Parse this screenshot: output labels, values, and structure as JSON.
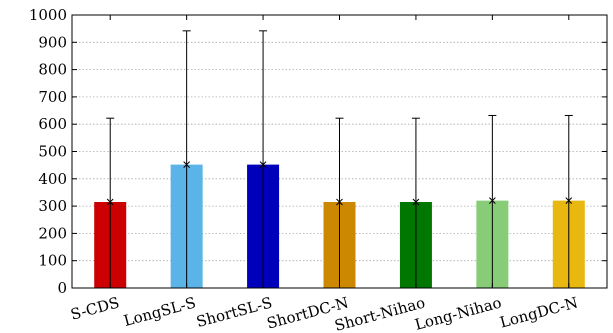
{
  "chart_data": {
    "type": "bar",
    "categories": [
      "S-CDS",
      "LongSL-S",
      "ShortSL-S",
      "ShortDC-N",
      "Short-Nihao",
      "Long-Nihao",
      "LongDC-N"
    ],
    "values": [
      315,
      452,
      452,
      315,
      315,
      320,
      320
    ],
    "error_high": [
      622,
      942,
      942,
      622,
      622,
      632,
      632
    ],
    "error_low": [
      0,
      0,
      0,
      0,
      0,
      0,
      0
    ],
    "colors": [
      "#cc0000",
      "#5ab4e8",
      "#0000bb",
      "#cc8800",
      "#007700",
      "#88cc77",
      "#e8b810"
    ],
    "ylim": [
      0,
      1000
    ],
    "yticks": [
      0,
      100,
      200,
      300,
      400,
      500,
      600,
      700,
      800,
      900,
      1000
    ],
    "ytick_labels": [
      "0",
      "100",
      "200",
      "300",
      "400",
      "500",
      "600",
      "700",
      "800",
      "900",
      "1000"
    ],
    "grid": true,
    "title": "",
    "xlabel": "",
    "ylabel": ""
  }
}
